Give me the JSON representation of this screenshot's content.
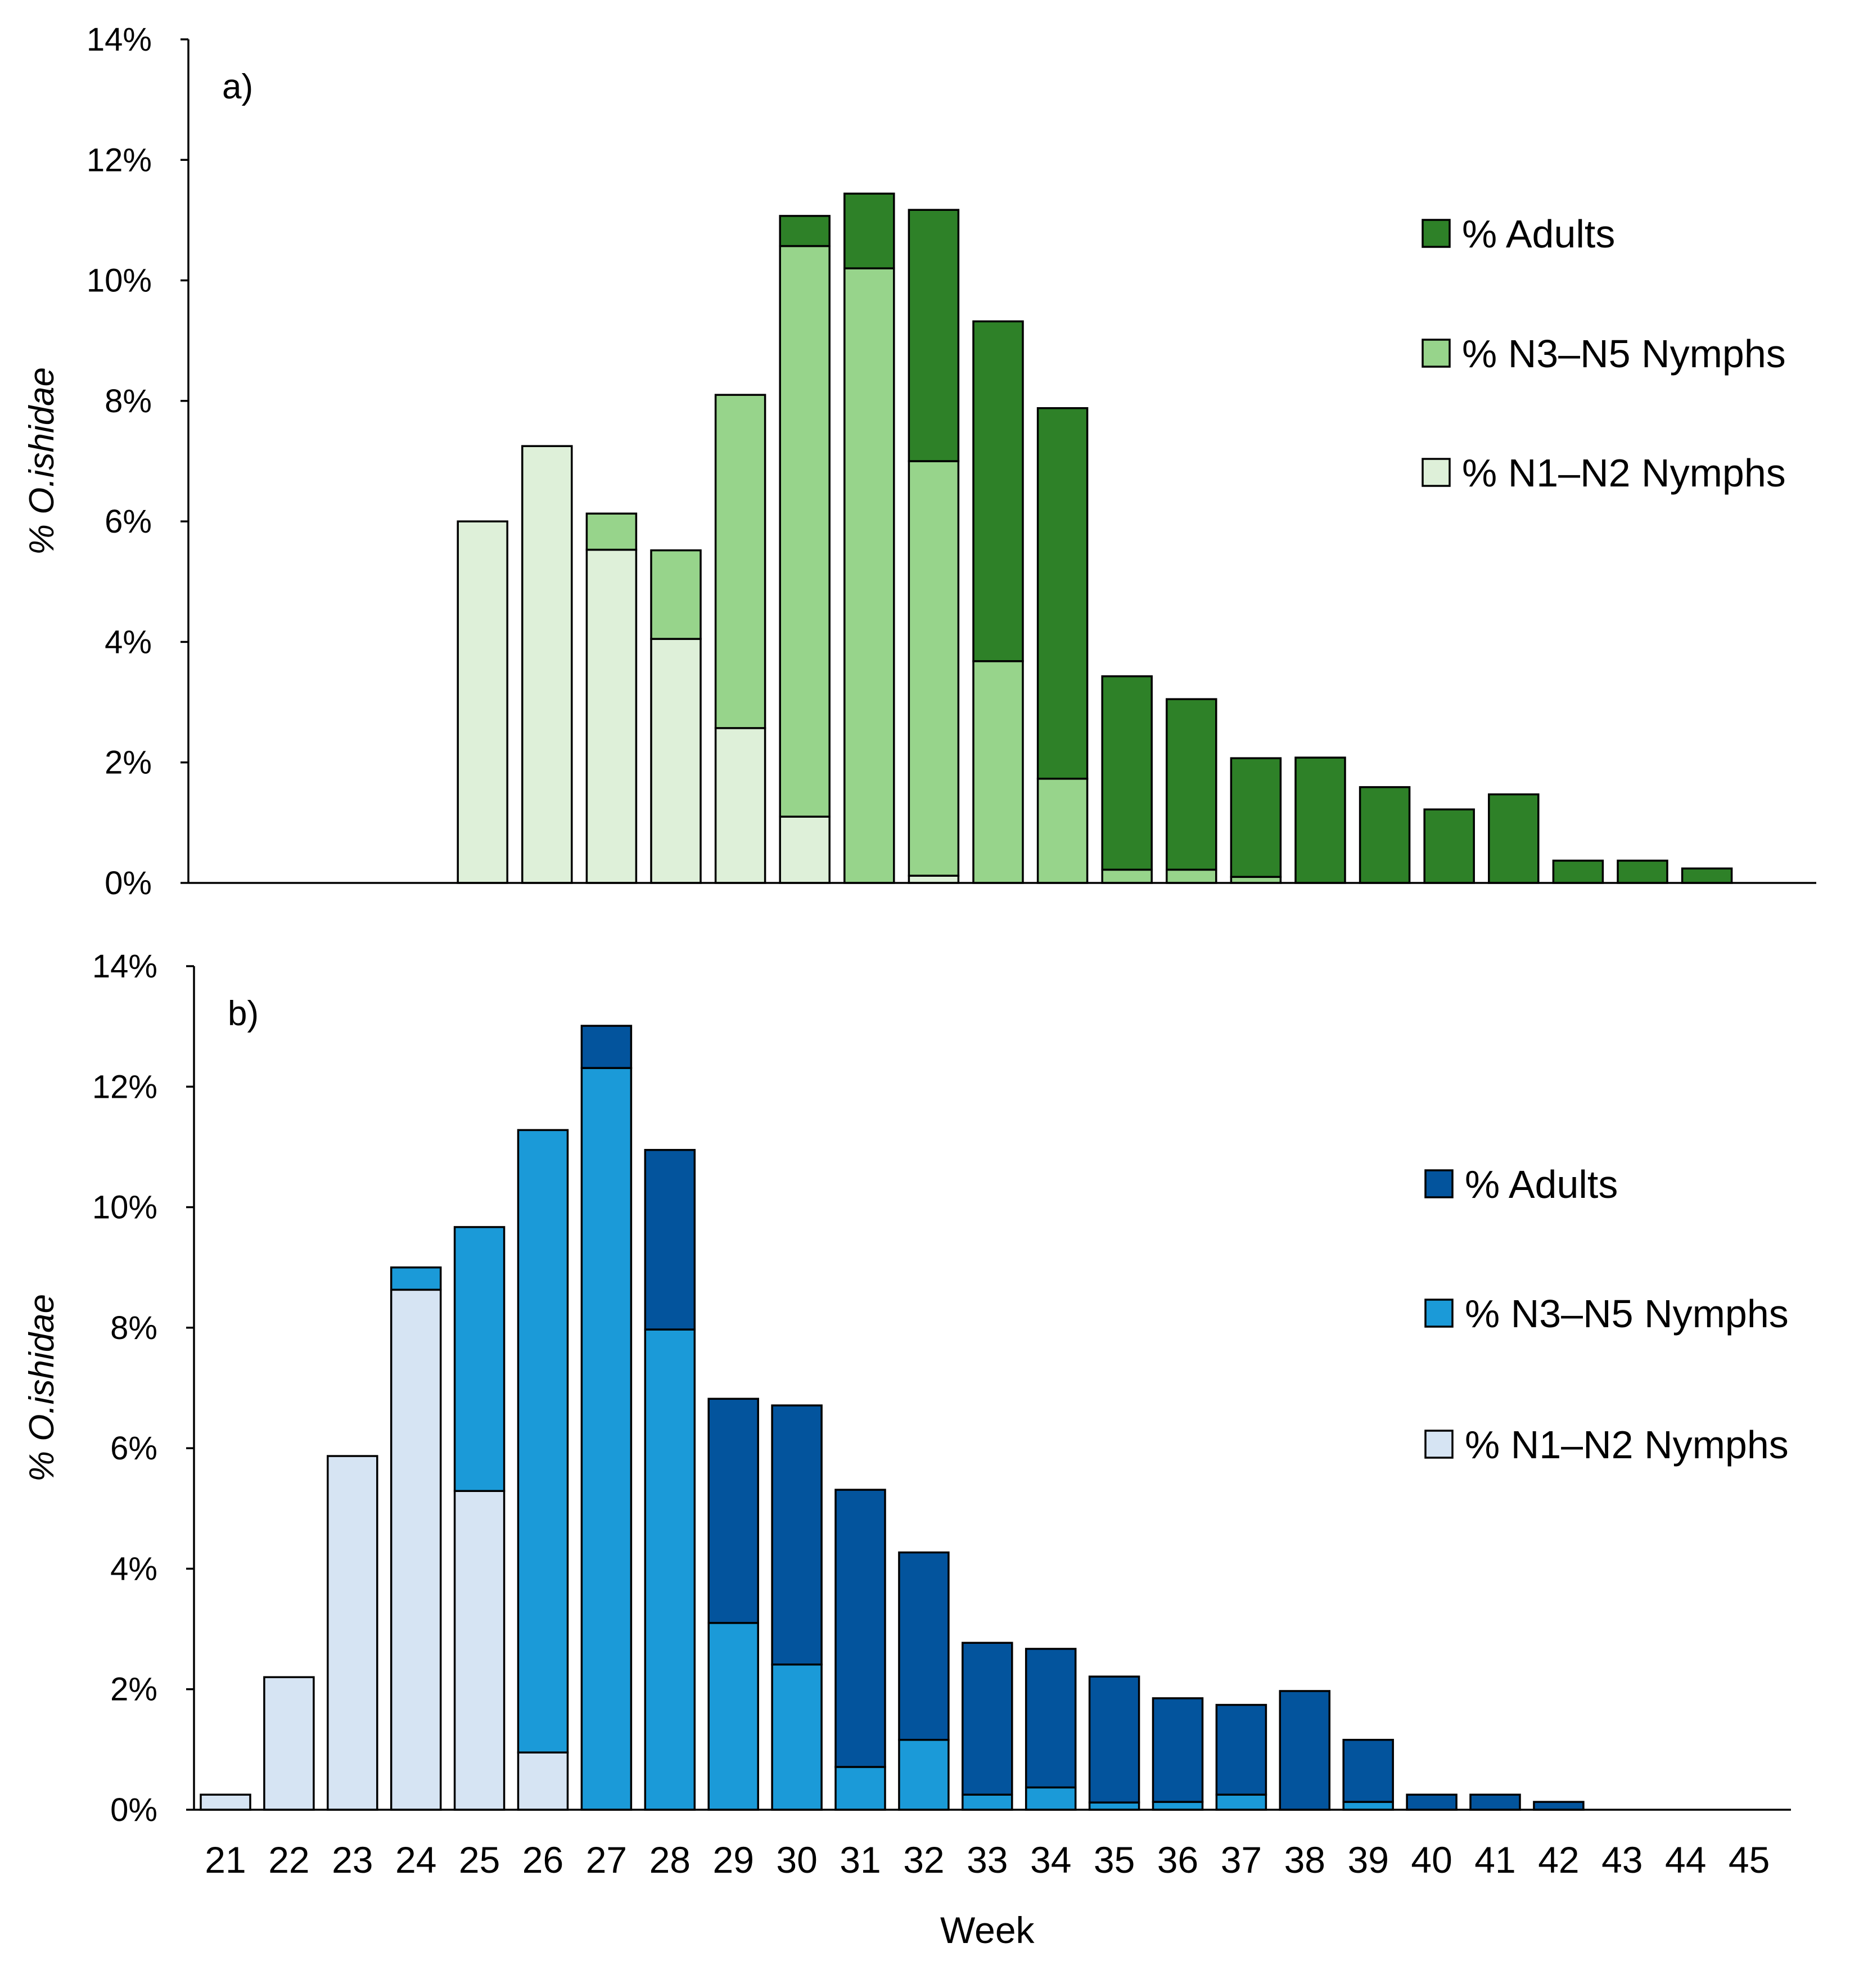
{
  "chart_data": [
    {
      "type": "bar",
      "stacked": true,
      "panel_label": "a)",
      "ylabel_prefix": "% ",
      "ylabel_italic": "O.ishidae",
      "ylim": [
        0,
        14
      ],
      "yticks": [
        "0%",
        "2%",
        "4%",
        "6%",
        "8%",
        "10%",
        "12%",
        "14%"
      ],
      "categories": [
        "21",
        "22",
        "23",
        "24",
        "25",
        "26",
        "27",
        "28",
        "29",
        "30",
        "31",
        "32",
        "33",
        "34",
        "35",
        "36",
        "37",
        "38",
        "39",
        "40",
        "41",
        "42",
        "43",
        "44",
        "45"
      ],
      "grid": false,
      "legend_position": "right",
      "series": [
        {
          "name": "% N1–N2 Nymphs",
          "color": "#def0d9",
          "values": [
            0,
            0,
            6.0,
            7.25,
            5.53,
            4.05,
            2.57,
            1.1,
            0,
            0.12,
            0,
            0,
            0,
            0,
            0,
            0,
            0,
            0,
            0,
            0,
            0,
            0,
            0,
            0,
            0
          ]
        },
        {
          "name": "% N3–N5 Nymphs",
          "color": "#97d48b",
          "values": [
            0,
            0,
            0,
            0,
            0.6,
            1.47,
            5.53,
            9.47,
            10.2,
            6.88,
            3.68,
            1.73,
            0.22,
            0.22,
            0.1,
            0,
            0,
            0,
            0,
            0,
            0,
            0,
            0,
            0,
            0
          ]
        },
        {
          "name": "% Adults",
          "color": "#2e8128",
          "values": [
            0,
            0,
            0,
            0,
            0,
            0,
            0,
            0.5,
            1.24,
            4.17,
            5.64,
            6.15,
            3.21,
            2.83,
            1.97,
            2.08,
            1.59,
            1.22,
            1.47,
            0.37,
            0.37,
            0.24,
            0,
            0,
            0
          ]
        }
      ]
    },
    {
      "type": "bar",
      "stacked": true,
      "panel_label": "b)",
      "ylabel_prefix": "% ",
      "ylabel_italic": "O.ishidae",
      "xlabel": "Week",
      "ylim": [
        0,
        14
      ],
      "yticks": [
        "0%",
        "2%",
        "4%",
        "6%",
        "8%",
        "10%",
        "12%",
        "14%"
      ],
      "categories": [
        "21",
        "22",
        "23",
        "24",
        "25",
        "26",
        "27",
        "28",
        "29",
        "30",
        "31",
        "32",
        "33",
        "34",
        "35",
        "36",
        "37",
        "38",
        "39",
        "40",
        "41",
        "42",
        "43",
        "44",
        "45"
      ],
      "grid": false,
      "legend_position": "right",
      "series": [
        {
          "name": "% N1–N2 Nymphs",
          "color": "#d6e4f3",
          "values": [
            0.25,
            2.2,
            5.87,
            8.63,
            5.29,
            0.95,
            0,
            0,
            0,
            0,
            0,
            0,
            0,
            0,
            0,
            0,
            0,
            0,
            0,
            0,
            0,
            0,
            0,
            0,
            0
          ]
        },
        {
          "name": "% N3–N5 Nymphs",
          "color": "#1b9ad8",
          "values": [
            0,
            0,
            0,
            0.37,
            4.38,
            10.33,
            12.31,
            7.97,
            3.1,
            2.41,
            0.71,
            1.16,
            0.25,
            0.37,
            0.12,
            0.13,
            0.25,
            0,
            0.13,
            0,
            0,
            0,
            0,
            0,
            0
          ]
        },
        {
          "name": "% Adults",
          "color": "#03549d",
          "values": [
            0,
            0,
            0,
            0,
            0,
            0,
            0.7,
            2.98,
            3.72,
            4.3,
            4.6,
            3.11,
            2.52,
            2.3,
            2.09,
            1.72,
            1.49,
            1.97,
            1.03,
            0.25,
            0.25,
            0.13,
            0,
            0,
            0
          ]
        }
      ]
    }
  ]
}
